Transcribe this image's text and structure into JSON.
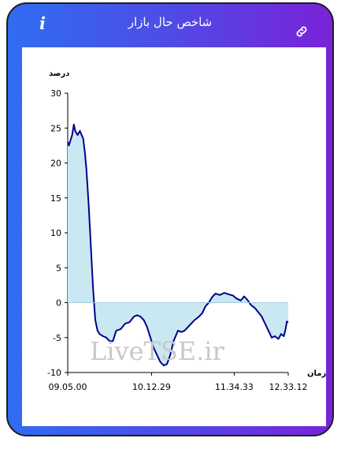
{
  "header": {
    "title": "شاخص حال بازار",
    "info_icon": "info-icon",
    "link_icon": "link-icon"
  },
  "watermark": "LiveTSE.ir",
  "colors": {
    "gradient_start": "#2f6df2",
    "gradient_end": "#7a22d8",
    "line": "#00008b",
    "fill": "#c9e8f2"
  },
  "chart_data": {
    "type": "area",
    "ylabel": "درصد",
    "xlabel": "زمان",
    "ylim": [
      -10,
      30
    ],
    "yticks": [
      -10,
      -5,
      0,
      5,
      10,
      15,
      20,
      25,
      30
    ],
    "xticks": [
      "09.05.00",
      "10.12.29",
      "11.34.33",
      "12.33.12"
    ],
    "xtick_positions": [
      0,
      0.38,
      0.755,
      1.0
    ],
    "grid": false,
    "series": [
      {
        "values": [
          [
            0.0,
            23.0
          ],
          [
            0.005,
            22.5
          ],
          [
            0.012,
            23.2
          ],
          [
            0.02,
            24.0
          ],
          [
            0.028,
            25.5
          ],
          [
            0.035,
            24.5
          ],
          [
            0.045,
            24.0
          ],
          [
            0.055,
            24.6
          ],
          [
            0.063,
            24.0
          ],
          [
            0.07,
            23.5
          ],
          [
            0.078,
            21.5
          ],
          [
            0.085,
            19.0
          ],
          [
            0.095,
            14.0
          ],
          [
            0.105,
            8.0
          ],
          [
            0.115,
            2.0
          ],
          [
            0.125,
            -2.5
          ],
          [
            0.135,
            -4.0
          ],
          [
            0.145,
            -4.5
          ],
          [
            0.16,
            -4.8
          ],
          [
            0.175,
            -5.0
          ],
          [
            0.19,
            -5.5
          ],
          [
            0.205,
            -5.5
          ],
          [
            0.22,
            -4.0
          ],
          [
            0.24,
            -3.8
          ],
          [
            0.26,
            -3.0
          ],
          [
            0.28,
            -2.8
          ],
          [
            0.3,
            -2.0
          ],
          [
            0.315,
            -1.8
          ],
          [
            0.33,
            -2.0
          ],
          [
            0.345,
            -2.5
          ],
          [
            0.36,
            -3.5
          ],
          [
            0.375,
            -5.0
          ],
          [
            0.39,
            -6.5
          ],
          [
            0.405,
            -7.5
          ],
          [
            0.42,
            -8.5
          ],
          [
            0.435,
            -9.0
          ],
          [
            0.45,
            -8.8
          ],
          [
            0.465,
            -7.5
          ],
          [
            0.48,
            -5.5
          ],
          [
            0.5,
            -4.0
          ],
          [
            0.515,
            -4.2
          ],
          [
            0.53,
            -4.0
          ],
          [
            0.545,
            -3.5
          ],
          [
            0.56,
            -3.0
          ],
          [
            0.575,
            -2.5
          ],
          [
            0.595,
            -2.0
          ],
          [
            0.61,
            -1.5
          ],
          [
            0.625,
            -0.5
          ],
          [
            0.64,
            0.0
          ],
          [
            0.655,
            0.8
          ],
          [
            0.67,
            1.3
          ],
          [
            0.69,
            1.1
          ],
          [
            0.71,
            1.4
          ],
          [
            0.73,
            1.2
          ],
          [
            0.75,
            1.0
          ],
          [
            0.765,
            0.6
          ],
          [
            0.785,
            0.3
          ],
          [
            0.8,
            0.9
          ],
          [
            0.815,
            0.4
          ],
          [
            0.83,
            -0.3
          ],
          [
            0.85,
            -0.8
          ],
          [
            0.865,
            -1.4
          ],
          [
            0.88,
            -2.0
          ],
          [
            0.895,
            -3.0
          ],
          [
            0.91,
            -4.0
          ],
          [
            0.925,
            -5.0
          ],
          [
            0.94,
            -4.8
          ],
          [
            0.955,
            -5.2
          ],
          [
            0.968,
            -4.5
          ],
          [
            0.98,
            -4.8
          ],
          [
            0.988,
            -3.8
          ],
          [
            0.994,
            -2.7
          ],
          [
            1.0,
            -2.8
          ]
        ]
      }
    ]
  }
}
